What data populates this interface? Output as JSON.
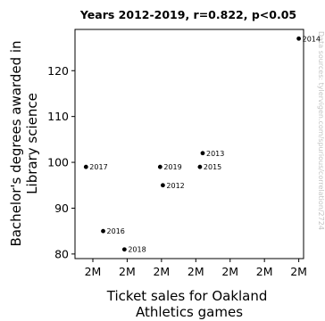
{
  "chart_data": {
    "type": "scatter",
    "title": "Years 2012-2019, r=0.822, p<0.05",
    "xlabel": "Ticket sales for Oakland Athletics games",
    "xlabel_lines": [
      "Ticket sales for Oakland",
      "Athletics games"
    ],
    "ylabel": "Bachelor's degrees awarded in Library science",
    "ylabel_lines": [
      "Bachelor's degrees awarded in",
      "Library science"
    ],
    "x_tick_labels": [
      "2M",
      "2M",
      "2M",
      "2M",
      "2M",
      "2M",
      "2M"
    ],
    "x_ticks": [
      1.5,
      1.55,
      1.6,
      1.65,
      1.7,
      1.75,
      1.8
    ],
    "xlim": [
      1.474,
      1.807
    ],
    "ylim": [
      79,
      129
    ],
    "y_ticks": [
      80,
      90,
      100,
      110,
      120
    ],
    "grid": false,
    "watermark": "Data sources: tylervigen.com/spurious/correlation/2724",
    "points": [
      {
        "label": "2012",
        "x": 1.602,
        "y": 95
      },
      {
        "label": "2013",
        "x": 1.66,
        "y": 102
      },
      {
        "label": "2014",
        "x": 1.8,
        "y": 127
      },
      {
        "label": "2015",
        "x": 1.656,
        "y": 99
      },
      {
        "label": "2016",
        "x": 1.515,
        "y": 85
      },
      {
        "label": "2017",
        "x": 1.49,
        "y": 99
      },
      {
        "label": "2018",
        "x": 1.546,
        "y": 81
      },
      {
        "label": "2019",
        "x": 1.598,
        "y": 99
      }
    ]
  }
}
